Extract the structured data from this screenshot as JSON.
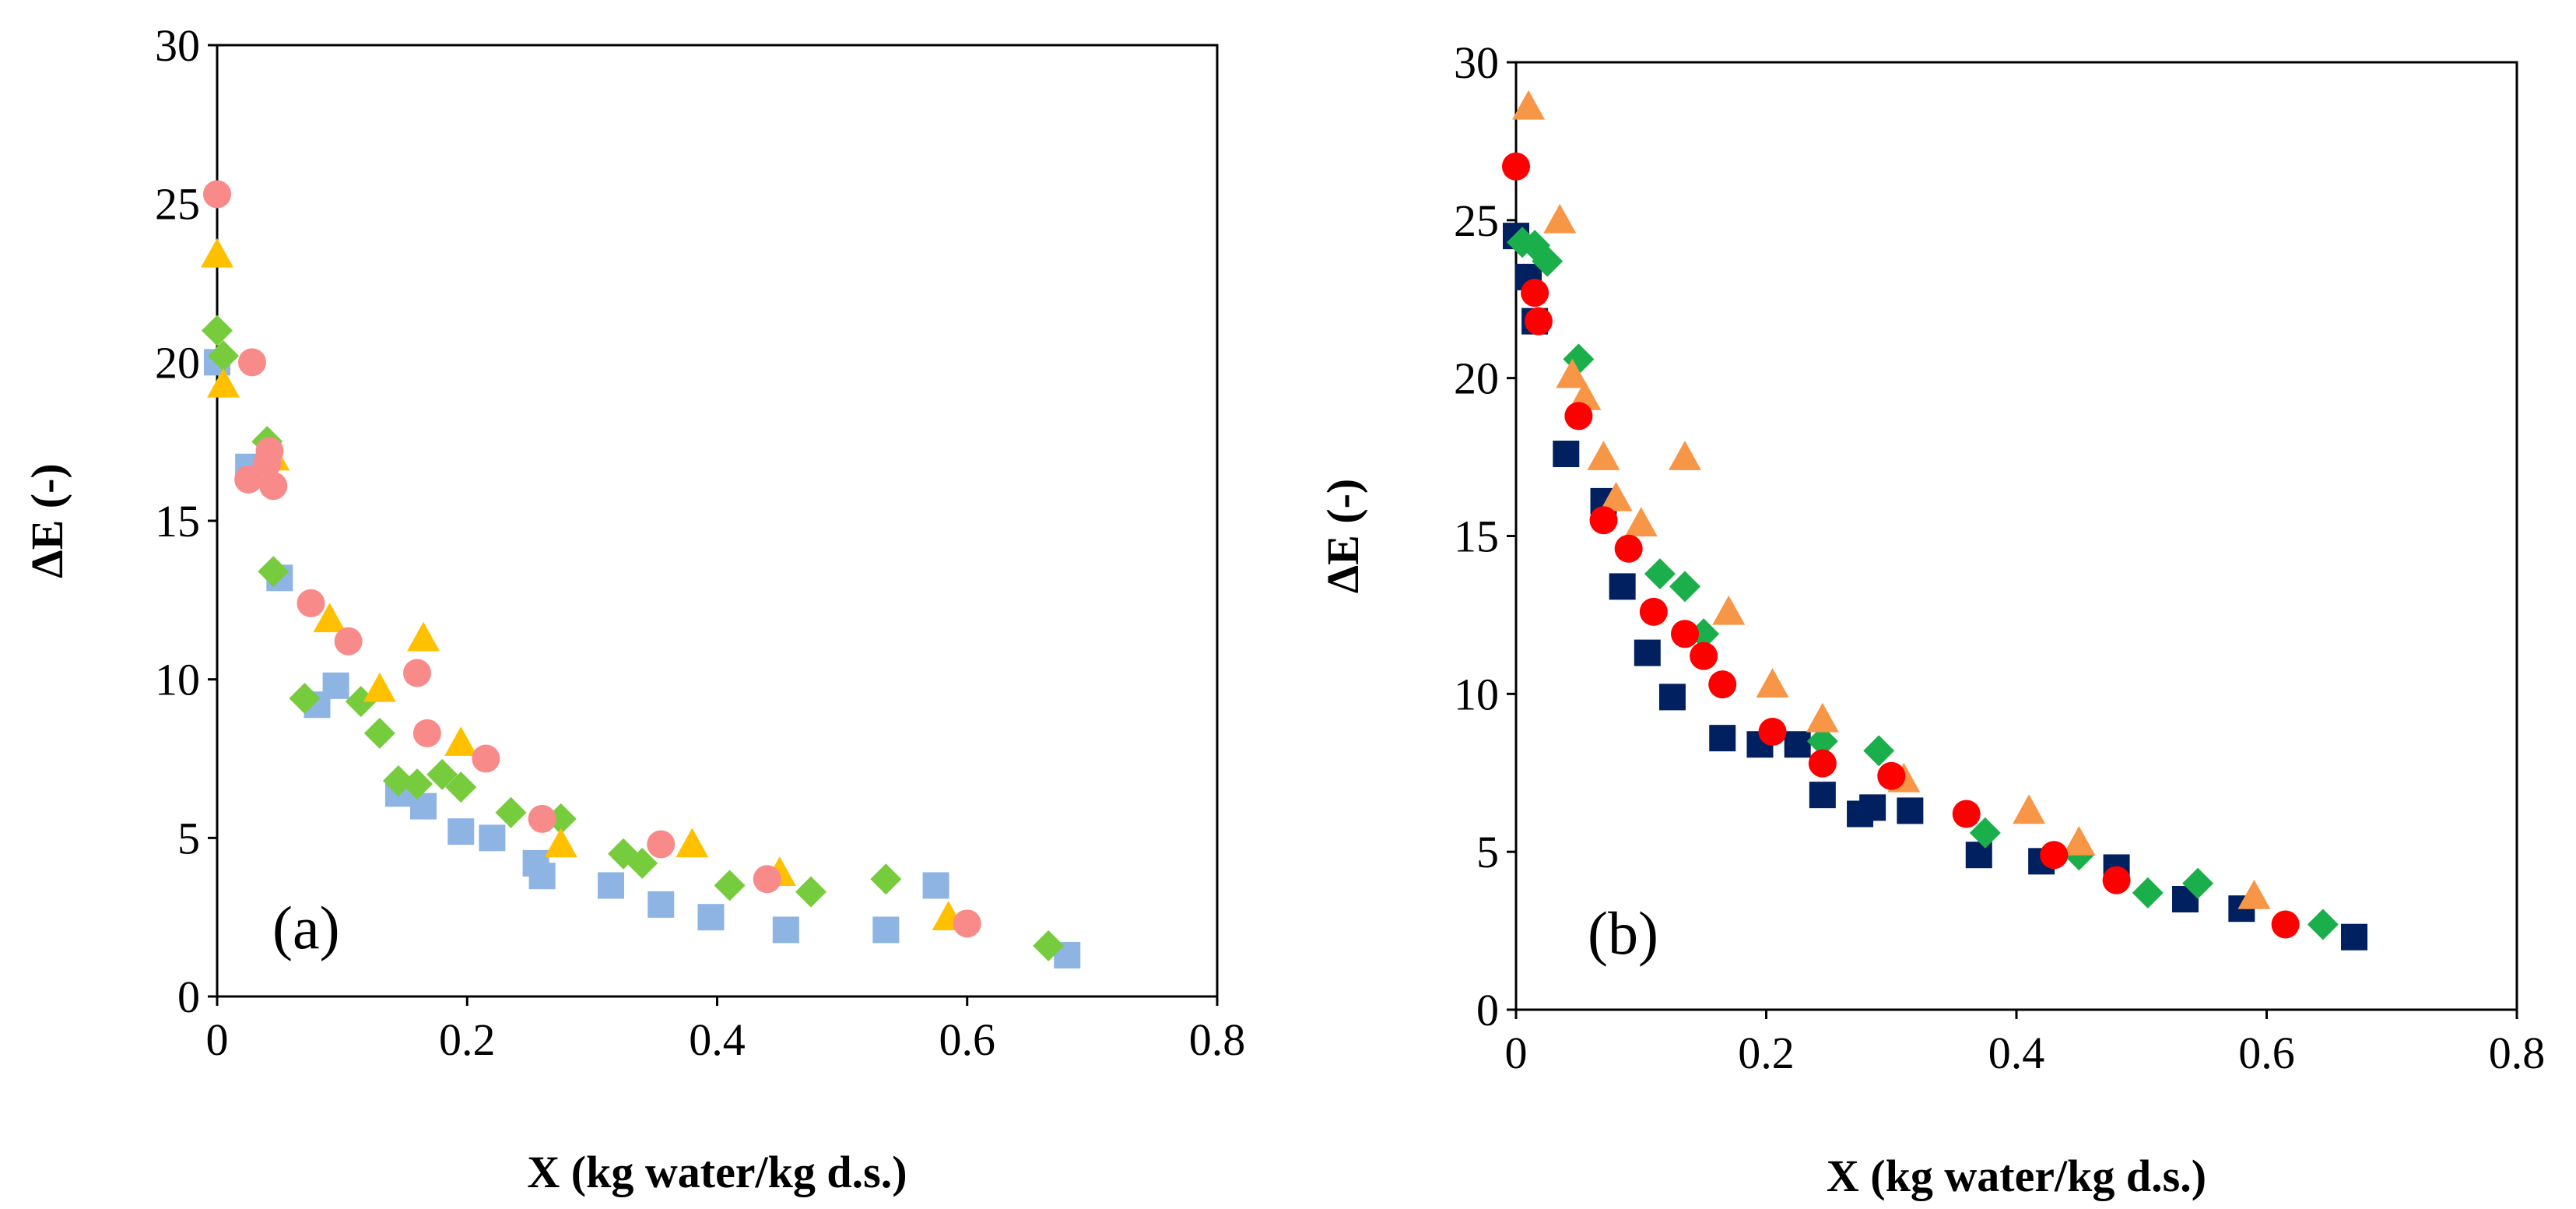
{
  "chart_data": [
    {
      "type": "scatter",
      "panel_label": "(a)",
      "xlabel": "X (kg water/kg d.s.)",
      "ylabel": "ΔE (-)",
      "xlim": [
        0,
        0.8
      ],
      "ylim": [
        0,
        30
      ],
      "xticks": [
        "0",
        "0.2",
        "0.4",
        "0.6",
        "0.8"
      ],
      "yticks": [
        "0",
        "5",
        "10",
        "15",
        "20",
        "25",
        "30"
      ],
      "grid": false,
      "series": [
        {
          "marker": "square",
          "color": "#8EB4E3",
          "points": [
            [
              0.0,
              20.0
            ],
            [
              0.025,
              16.7
            ],
            [
              0.05,
              13.2
            ],
            [
              0.08,
              9.2
            ],
            [
              0.095,
              9.8
            ],
            [
              0.145,
              6.4
            ],
            [
              0.165,
              6.0
            ],
            [
              0.195,
              5.2
            ],
            [
              0.22,
              5.0
            ],
            [
              0.255,
              4.2
            ],
            [
              0.26,
              3.8
            ],
            [
              0.315,
              3.5
            ],
            [
              0.355,
              2.9
            ],
            [
              0.395,
              2.5
            ],
            [
              0.455,
              2.1
            ],
            [
              0.535,
              2.1
            ],
            [
              0.575,
              3.5
            ],
            [
              0.68,
              1.3
            ]
          ]
        },
        {
          "marker": "diamond",
          "color": "#77CC3D",
          "points": [
            [
              0.0,
              21.0
            ],
            [
              0.005,
              20.2
            ],
            [
              0.04,
              17.5
            ],
            [
              0.045,
              13.4
            ],
            [
              0.07,
              9.4
            ],
            [
              0.115,
              9.3
            ],
            [
              0.13,
              8.3
            ],
            [
              0.145,
              6.8
            ],
            [
              0.16,
              6.7
            ],
            [
              0.18,
              7.0
            ],
            [
              0.195,
              6.6
            ],
            [
              0.235,
              5.8
            ],
            [
              0.275,
              5.6
            ],
            [
              0.325,
              4.5
            ],
            [
              0.34,
              4.2
            ],
            [
              0.41,
              3.5
            ],
            [
              0.475,
              3.3
            ],
            [
              0.535,
              3.7
            ],
            [
              0.665,
              1.6
            ]
          ]
        },
        {
          "marker": "triangle",
          "color": "#FFC000",
          "points": [
            [
              0.0,
              23.4
            ],
            [
              0.005,
              19.3
            ],
            [
              0.045,
              17.0
            ],
            [
              0.09,
              11.9
            ],
            [
              0.13,
              9.7
            ],
            [
              0.165,
              11.3
            ],
            [
              0.195,
              8.0
            ],
            [
              0.275,
              4.8
            ],
            [
              0.38,
              4.8
            ],
            [
              0.45,
              3.9
            ],
            [
              0.585,
              2.5
            ]
          ]
        },
        {
          "marker": "circle",
          "color": "#F98A8A",
          "points": [
            [
              0.0,
              25.3
            ],
            [
              0.025,
              16.3
            ],
            [
              0.028,
              20.0
            ],
            [
              0.04,
              16.8
            ],
            [
              0.042,
              17.2
            ],
            [
              0.045,
              16.1
            ],
            [
              0.075,
              12.4
            ],
            [
              0.105,
              11.2
            ],
            [
              0.16,
              10.2
            ],
            [
              0.168,
              8.3
            ],
            [
              0.215,
              7.5
            ],
            [
              0.26,
              5.6
            ],
            [
              0.355,
              4.8
            ],
            [
              0.44,
              3.7
            ],
            [
              0.6,
              2.3
            ]
          ]
        }
      ]
    },
    {
      "type": "scatter",
      "panel_label": "(b)",
      "xlabel": "X (kg water/kg d.s.)",
      "ylabel": "ΔE (-)",
      "xlim": [
        0,
        0.8
      ],
      "ylim": [
        0,
        30
      ],
      "xticks": [
        "0",
        "0.2",
        "0.4",
        "0.6",
        "0.8"
      ],
      "yticks": [
        "0",
        "5",
        "10",
        "15",
        "20",
        "25",
        "30"
      ],
      "grid": false,
      "series": [
        {
          "marker": "square",
          "color": "#002060",
          "points": [
            [
              0.0,
              24.5
            ],
            [
              0.01,
              23.2
            ],
            [
              0.015,
              21.8
            ],
            [
              0.04,
              17.6
            ],
            [
              0.07,
              16.1
            ],
            [
              0.085,
              13.4
            ],
            [
              0.105,
              11.3
            ],
            [
              0.125,
              9.9
            ],
            [
              0.165,
              8.6
            ],
            [
              0.195,
              8.4
            ],
            [
              0.225,
              8.4
            ],
            [
              0.245,
              6.8
            ],
            [
              0.275,
              6.2
            ],
            [
              0.285,
              6.4
            ],
            [
              0.315,
              6.3
            ],
            [
              0.37,
              4.9
            ],
            [
              0.42,
              4.7
            ],
            [
              0.48,
              4.5
            ],
            [
              0.535,
              3.5
            ],
            [
              0.58,
              3.2
            ],
            [
              0.67,
              2.3
            ]
          ]
        },
        {
          "marker": "diamond",
          "color": "#1AAF4A",
          "points": [
            [
              0.005,
              24.3
            ],
            [
              0.015,
              24.2
            ],
            [
              0.025,
              23.7
            ],
            [
              0.05,
              20.6
            ],
            [
              0.115,
              13.8
            ],
            [
              0.135,
              13.4
            ],
            [
              0.15,
              11.9
            ],
            [
              0.245,
              8.5
            ],
            [
              0.29,
              8.2
            ],
            [
              0.375,
              5.6
            ],
            [
              0.45,
              4.9
            ],
            [
              0.505,
              3.7
            ],
            [
              0.545,
              4.0
            ],
            [
              0.645,
              2.7
            ]
          ]
        },
        {
          "marker": "triangle",
          "color": "#F79646",
          "points": [
            [
              0.01,
              28.6
            ],
            [
              0.035,
              25.0
            ],
            [
              0.045,
              20.1
            ],
            [
              0.055,
              19.4
            ],
            [
              0.07,
              17.5
            ],
            [
              0.08,
              16.2
            ],
            [
              0.1,
              15.4
            ],
            [
              0.135,
              17.5
            ],
            [
              0.17,
              12.6
            ],
            [
              0.205,
              10.3
            ],
            [
              0.245,
              9.2
            ],
            [
              0.31,
              7.3
            ],
            [
              0.41,
              6.3
            ],
            [
              0.45,
              5.3
            ],
            [
              0.59,
              3.6
            ]
          ]
        },
        {
          "marker": "circle",
          "color": "#FF0000",
          "points": [
            [
              0.0,
              26.7
            ],
            [
              0.015,
              22.7
            ],
            [
              0.018,
              21.8
            ],
            [
              0.05,
              18.8
            ],
            [
              0.07,
              15.5
            ],
            [
              0.09,
              14.6
            ],
            [
              0.11,
              12.6
            ],
            [
              0.135,
              11.9
            ],
            [
              0.15,
              11.2
            ],
            [
              0.165,
              10.3
            ],
            [
              0.205,
              8.8
            ],
            [
              0.245,
              7.8
            ],
            [
              0.3,
              7.4
            ],
            [
              0.36,
              6.2
            ],
            [
              0.43,
              4.9
            ],
            [
              0.48,
              4.1
            ],
            [
              0.615,
              2.7
            ]
          ]
        }
      ]
    }
  ]
}
